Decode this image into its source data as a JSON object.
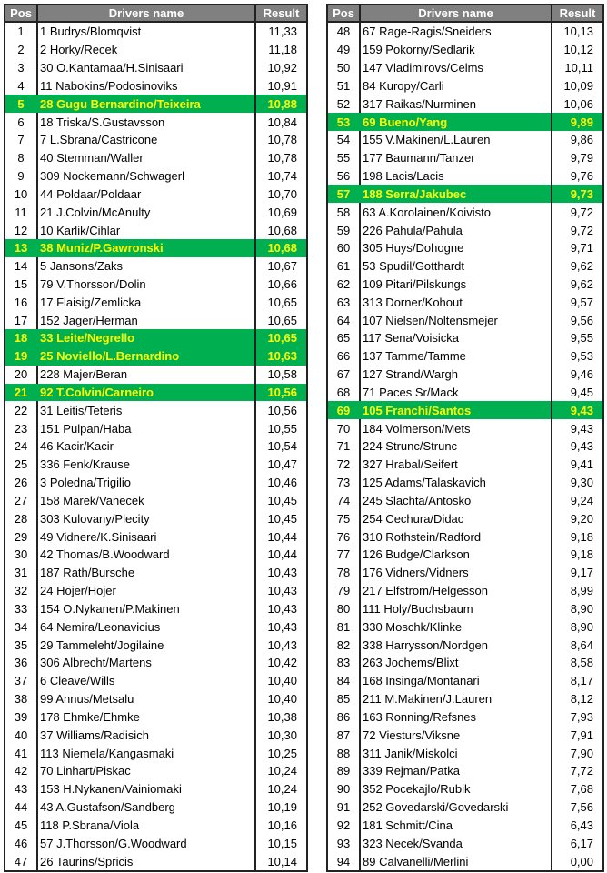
{
  "colors": {
    "header_bg": "#808080",
    "highlight_bg": "#00b050",
    "highlight_text": "#ffff00"
  },
  "headers": {
    "pos": "Pos",
    "name": "Drivers name",
    "result": "Result"
  },
  "tables": [
    {
      "rows": [
        {
          "pos": "1",
          "name": "1 Budrys/Blomqvist",
          "result": "11,33"
        },
        {
          "pos": "2",
          "name": "2 Horky/Recek",
          "result": "11,18"
        },
        {
          "pos": "3",
          "name": "30 O.Kantamaa/H.Sinisaari",
          "result": "10,92"
        },
        {
          "pos": "4",
          "name": "11 Nabokins/Podosinoviks",
          "result": "10,91"
        },
        {
          "pos": "5",
          "name": "28 Gugu Bernardino/Teixeira",
          "result": "10,88",
          "highlight": true
        },
        {
          "pos": "6",
          "name": "18 Triska/S.Gustavsson",
          "result": "10,84"
        },
        {
          "pos": "7",
          "name": "7 L.Sbrana/Castricone",
          "result": "10,78"
        },
        {
          "pos": "8",
          "name": "40 Stemman/Waller",
          "result": "10,78"
        },
        {
          "pos": "9",
          "name": "309 Nockemann/Schwagerl",
          "result": "10,74"
        },
        {
          "pos": "10",
          "name": "44 Poldaar/Poldaar",
          "result": "10,70"
        },
        {
          "pos": "11",
          "name": "21 J.Colvin/McAnulty",
          "result": "10,69"
        },
        {
          "pos": "12",
          "name": "10 Karlik/Cihlar",
          "result": "10,68"
        },
        {
          "pos": "13",
          "name": "38 Muniz/P.Gawronski",
          "result": "10,68",
          "highlight": true
        },
        {
          "pos": "14",
          "name": "5 Jansons/Zaks",
          "result": "10,67"
        },
        {
          "pos": "15",
          "name": "79 V.Thorsson/Dolin",
          "result": "10,66"
        },
        {
          "pos": "16",
          "name": "17 Flaisig/Zemlicka",
          "result": "10,65"
        },
        {
          "pos": "17",
          "name": "152 Jager/Herman",
          "result": "10,65"
        },
        {
          "pos": "18",
          "name": "33 Leite/Negrello",
          "result": "10,65",
          "highlight": true
        },
        {
          "pos": "19",
          "name": "25 Noviello/L.Bernardino",
          "result": "10,63",
          "highlight": true
        },
        {
          "pos": "20",
          "name": "228 Majer/Beran",
          "result": "10,58"
        },
        {
          "pos": "21",
          "name": "92 T.Colvin/Carneiro",
          "result": "10,56",
          "highlight": true
        },
        {
          "pos": "22",
          "name": "31 Leitis/Teteris",
          "result": "10,56"
        },
        {
          "pos": "23",
          "name": "151 Pulpan/Haba",
          "result": "10,55"
        },
        {
          "pos": "24",
          "name": "46 Kacir/Kacir",
          "result": "10,54"
        },
        {
          "pos": "25",
          "name": "336 Fenk/Krause",
          "result": "10,47"
        },
        {
          "pos": "26",
          "name": "3 Poledna/Trigilio",
          "result": "10,46"
        },
        {
          "pos": "27",
          "name": "158 Marek/Vanecek",
          "result": "10,45"
        },
        {
          "pos": "28",
          "name": "303 Kulovany/Plecity",
          "result": "10,45"
        },
        {
          "pos": "29",
          "name": "49 Vidnere/K.Sinisaari",
          "result": "10,44"
        },
        {
          "pos": "30",
          "name": "42 Thomas/B.Woodward",
          "result": "10,44"
        },
        {
          "pos": "31",
          "name": "187 Rath/Bursche",
          "result": "10,43"
        },
        {
          "pos": "32",
          "name": "24 Hojer/Hojer",
          "result": "10,43"
        },
        {
          "pos": "33",
          "name": "154 O.Nykanen/P.Makinen",
          "result": "10,43"
        },
        {
          "pos": "34",
          "name": "64 Nemira/Leonavicius",
          "result": "10,43"
        },
        {
          "pos": "35",
          "name": "29 Tammeleht/Jogilaine",
          "result": "10,43"
        },
        {
          "pos": "36",
          "name": "306 Albrecht/Martens",
          "result": "10,42"
        },
        {
          "pos": "37",
          "name": "6 Cleave/Wills",
          "result": "10,40"
        },
        {
          "pos": "38",
          "name": "99 Annus/Metsalu",
          "result": "10,40"
        },
        {
          "pos": "39",
          "name": "178 Ehmke/Ehmke",
          "result": "10,38"
        },
        {
          "pos": "40",
          "name": "37 Williams/Radisich",
          "result": "10,30"
        },
        {
          "pos": "41",
          "name": "113 Niemela/Kangasmaki",
          "result": "10,25"
        },
        {
          "pos": "42",
          "name": "70 Linhart/Piskac",
          "result": "10,24"
        },
        {
          "pos": "43",
          "name": "153 H.Nykanen/Vainiomaki",
          "result": "10,24"
        },
        {
          "pos": "44",
          "name": "43 A.Gustafson/Sandberg",
          "result": "10,19"
        },
        {
          "pos": "45",
          "name": "118 P.Sbrana/Viola",
          "result": "10,16"
        },
        {
          "pos": "46",
          "name": "57 J.Thorsson/G.Woodward",
          "result": "10,15"
        },
        {
          "pos": "47",
          "name": "26 Taurins/Spricis",
          "result": "10,14"
        }
      ]
    },
    {
      "rows": [
        {
          "pos": "48",
          "name": "67 Rage-Ragis/Sneiders",
          "result": "10,13"
        },
        {
          "pos": "49",
          "name": "159 Pokorny/Sedlarik",
          "result": "10,12"
        },
        {
          "pos": "50",
          "name": "147 Vladimirovs/Celms",
          "result": "10,11"
        },
        {
          "pos": "51",
          "name": "84 Kuropy/Carli",
          "result": "10,09"
        },
        {
          "pos": "52",
          "name": "317 Raikas/Nurminen",
          "result": "10,06"
        },
        {
          "pos": "53",
          "name": "69 Bueno/Yang",
          "result": "9,89",
          "highlight": true
        },
        {
          "pos": "54",
          "name": "155 V.Makinen/L.Lauren",
          "result": "9,86"
        },
        {
          "pos": "55",
          "name": "177 Baumann/Tanzer",
          "result": "9,79"
        },
        {
          "pos": "56",
          "name": "198 Lacis/Lacis",
          "result": "9,76"
        },
        {
          "pos": "57",
          "name": "188 Serra/Jakubec",
          "result": "9,73",
          "highlight": true
        },
        {
          "pos": "58",
          "name": "63 A.Korolainen/Koivisto",
          "result": "9,72"
        },
        {
          "pos": "59",
          "name": "226 Pahula/Pahula",
          "result": "9,72"
        },
        {
          "pos": "60",
          "name": "305 Huys/Dohogne",
          "result": "9,71"
        },
        {
          "pos": "61",
          "name": "53 Spudil/Gotthardt",
          "result": "9,62"
        },
        {
          "pos": "62",
          "name": "109 Pitari/Pilskungs",
          "result": "9,62"
        },
        {
          "pos": "63",
          "name": "313 Dorner/Kohout",
          "result": "9,57"
        },
        {
          "pos": "64",
          "name": "107 Nielsen/Noltensmejer",
          "result": "9,56"
        },
        {
          "pos": "65",
          "name": "117 Sena/Voisicka",
          "result": "9,55"
        },
        {
          "pos": "66",
          "name": "137 Tamme/Tamme",
          "result": "9,53"
        },
        {
          "pos": "67",
          "name": "127 Strand/Wargh",
          "result": "9,46"
        },
        {
          "pos": "68",
          "name": "71 Paces Sr/Mack",
          "result": "9,45"
        },
        {
          "pos": "69",
          "name": "105 Franchi/Santos",
          "result": "9,43",
          "highlight": true
        },
        {
          "pos": "70",
          "name": "184 Volmerson/Mets",
          "result": "9,43"
        },
        {
          "pos": "71",
          "name": "224 Strunc/Strunc",
          "result": "9,43"
        },
        {
          "pos": "72",
          "name": "327 Hrabal/Seifert",
          "result": "9,41"
        },
        {
          "pos": "73",
          "name": "125 Adams/Talaskavich",
          "result": "9,30"
        },
        {
          "pos": "74",
          "name": "245 Slachta/Antosko",
          "result": "9,24"
        },
        {
          "pos": "75",
          "name": "254 Cechura/Didac",
          "result": "9,20"
        },
        {
          "pos": "76",
          "name": "310 Rothstein/Radford",
          "result": "9,18"
        },
        {
          "pos": "77",
          "name": "126 Budge/Clarkson",
          "result": "9,18"
        },
        {
          "pos": "78",
          "name": "176 Vidners/Vidners",
          "result": "9,17"
        },
        {
          "pos": "79",
          "name": "217 Elfstrom/Helgesson",
          "result": "8,99"
        },
        {
          "pos": "80",
          "name": "111 Holy/Buchsbaum",
          "result": "8,90"
        },
        {
          "pos": "81",
          "name": "330 Moschk/Klinke",
          "result": "8,90"
        },
        {
          "pos": "82",
          "name": "338 Harrysson/Nordgen",
          "result": "8,64"
        },
        {
          "pos": "83",
          "name": "263 Jochems/Blixt",
          "result": "8,58"
        },
        {
          "pos": "84",
          "name": "168 Insinga/Montanari",
          "result": "8,17"
        },
        {
          "pos": "85",
          "name": "211 M.Makinen/J.Lauren",
          "result": "8,12"
        },
        {
          "pos": "86",
          "name": "163 Ronning/Refsnes",
          "result": "7,93"
        },
        {
          "pos": "87",
          "name": "72 Viesturs/Viksne",
          "result": "7,91"
        },
        {
          "pos": "88",
          "name": "311 Janik/Miskolci",
          "result": "7,90"
        },
        {
          "pos": "89",
          "name": "339 Rejman/Patka",
          "result": "7,72"
        },
        {
          "pos": "90",
          "name": "352 Pocekajlo/Rubik",
          "result": "7,68"
        },
        {
          "pos": "91",
          "name": "252 Govedarski/Govedarski",
          "result": "7,56"
        },
        {
          "pos": "92",
          "name": "181 Schmitt/Cina",
          "result": "6,43"
        },
        {
          "pos": "93",
          "name": "323 Necek/Svanda",
          "result": "6,17"
        },
        {
          "pos": "94",
          "name": "89 Calvanelli/Merlini",
          "result": "0,00"
        }
      ]
    }
  ]
}
